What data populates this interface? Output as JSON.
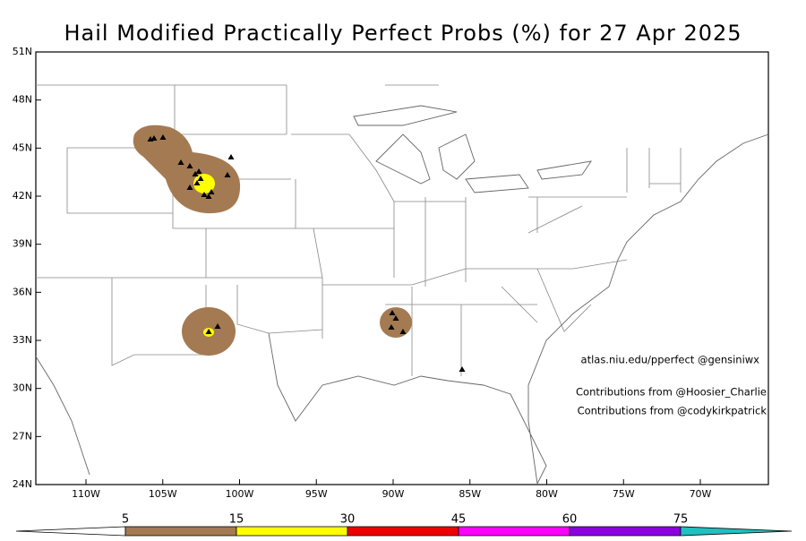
{
  "title": "Hail Modified Practically Perfect Probs (%) for 27 Apr 2025",
  "lat_labels": [
    "51N",
    "48N",
    "45N",
    "42N",
    "39N",
    "36N",
    "33N",
    "30N",
    "27N",
    "24N"
  ],
  "lon_labels": [
    "110W",
    "105W",
    "100W",
    "95W",
    "90W",
    "85W",
    "80W",
    "75W",
    "70W"
  ],
  "credits": [
    "atlas.niu.edu/pperfect @gensiniwx",
    "Contributions from @Hoosier_Charlie",
    "Contributions from @codykirkpatrick"
  ],
  "colorbar": {
    "ticks": [
      5,
      15,
      30,
      45,
      60,
      75
    ],
    "colors": [
      "#a47a52",
      "#ffff00",
      "#ee0000",
      "#ff00ff",
      "#8a00e0",
      "#20c0c0"
    ]
  }
}
